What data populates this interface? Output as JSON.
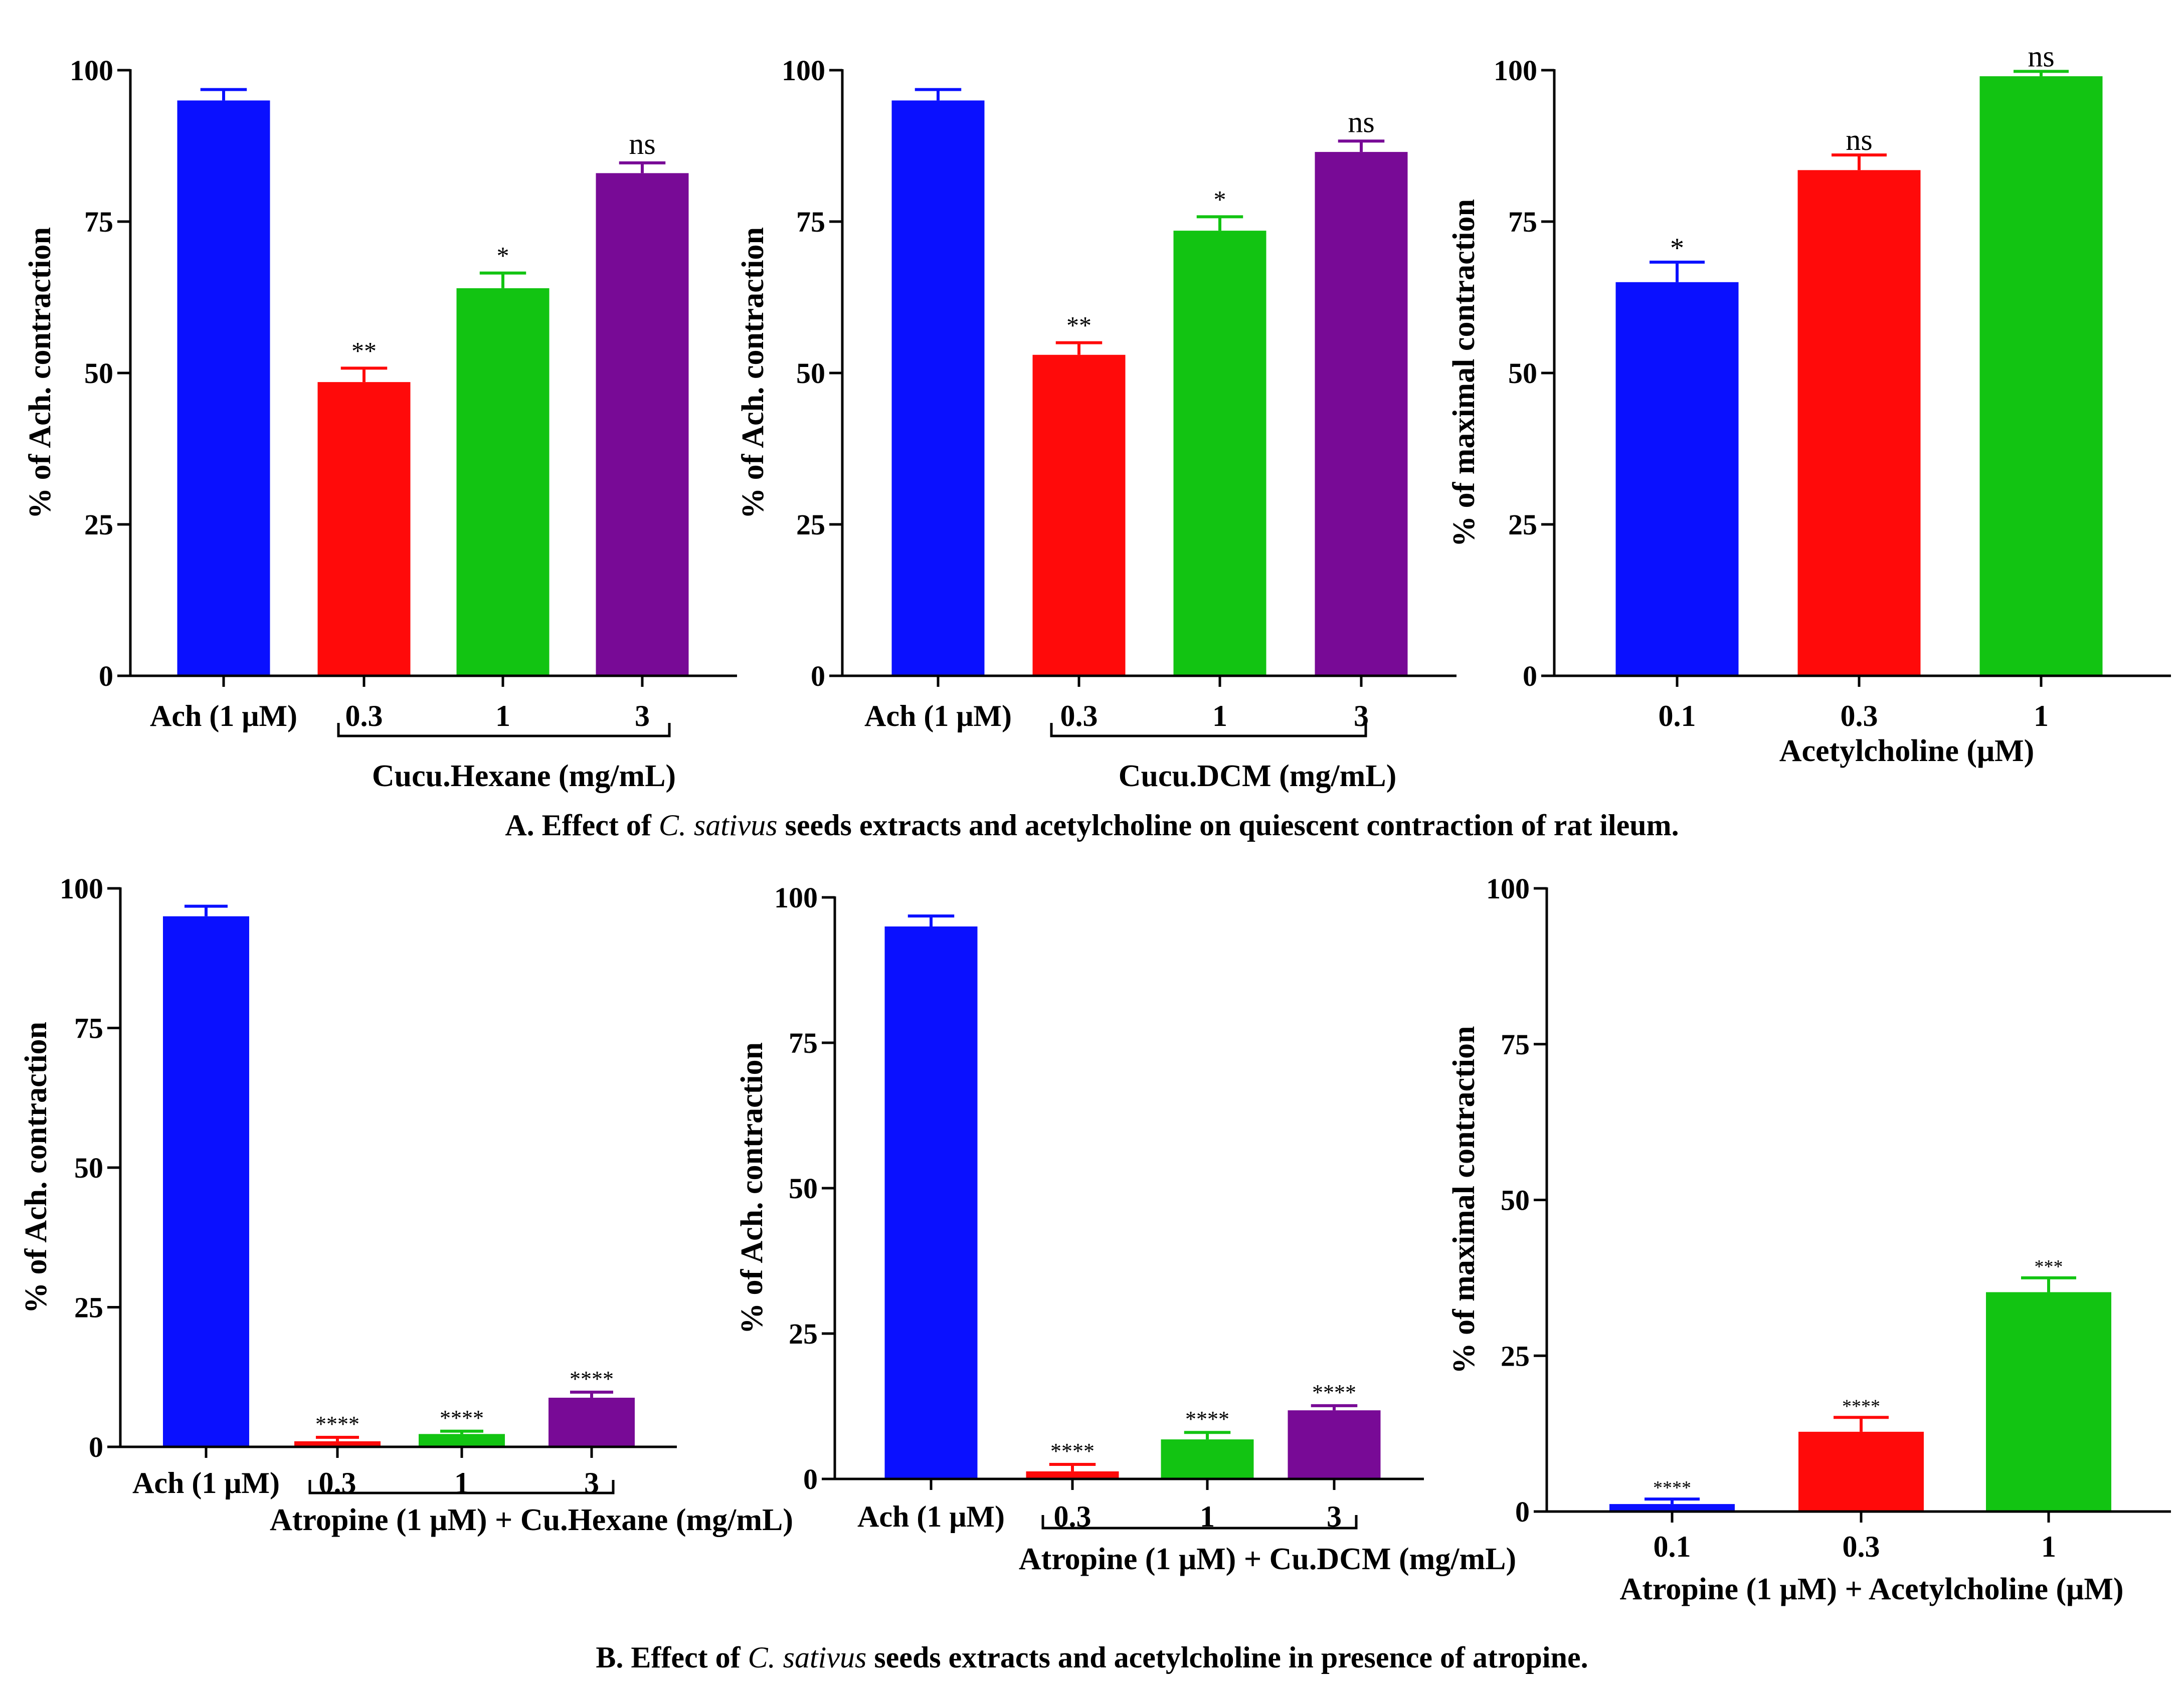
{
  "colors": {
    "blue": "#0a10ff",
    "red": "#ff0a0a",
    "green": "#12c412",
    "purple": "#780a96"
  },
  "captions": {
    "a": {
      "prefix": "A. Effect of ",
      "species": "C. sativus",
      "suffix": " seeds extracts and acetylcholine on quiescent contraction of rat ileum."
    },
    "b": {
      "prefix": "B. Effect of ",
      "species": "C. sativus",
      "suffix": " seeds extracts and acetylcholine in presence of atropine."
    }
  },
  "chart_data": [
    {
      "id": "A1",
      "type": "bar",
      "ylabel": "% of Ach. contraction",
      "ylim": [
        0,
        100
      ],
      "yticks": [
        0,
        25,
        50,
        75,
        100
      ],
      "categories": [
        "Ach (1 μM)",
        "0.3",
        "1",
        "3"
      ],
      "values": [
        95,
        48.5,
        64,
        83
      ],
      "errors": [
        1.8,
        2.3,
        2.5,
        1.7
      ],
      "colors": [
        "blue",
        "red",
        "green",
        "purple"
      ],
      "significance": [
        "",
        "**",
        "*",
        "ns"
      ],
      "xlabel": "Cucu.Hexane (mg/mL)"
    },
    {
      "id": "A2",
      "type": "bar",
      "ylabel": "% of Ach. contraction",
      "ylim": [
        0,
        100
      ],
      "yticks": [
        0,
        25,
        50,
        75,
        100
      ],
      "categories": [
        "Ach (1 μM)",
        "0.3",
        "1",
        "3"
      ],
      "values": [
        95,
        53,
        73.5,
        86.5
      ],
      "errors": [
        1.8,
        2,
        2.3,
        1.8
      ],
      "colors": [
        "blue",
        "red",
        "green",
        "purple"
      ],
      "significance": [
        "",
        "**",
        "*",
        "ns"
      ],
      "xlabel": "Cucu.DCM (mg/mL)"
    },
    {
      "id": "A3",
      "type": "bar",
      "ylabel": "% of maximal contraction",
      "ylim": [
        0,
        100
      ],
      "yticks": [
        0,
        25,
        50,
        75,
        100
      ],
      "categories": [
        "0.1",
        "0.3",
        "1"
      ],
      "values": [
        65,
        83.5,
        99
      ],
      "errors": [
        3.3,
        2.5,
        0.8
      ],
      "colors": [
        "blue",
        "red",
        "green"
      ],
      "significance": [
        "*",
        "ns",
        "ns"
      ],
      "xlabel": "Acetylcholine (μM)"
    },
    {
      "id": "B1",
      "type": "bar",
      "ylabel": "% of Ach. contraction",
      "ylim": [
        0,
        100
      ],
      "yticks": [
        0,
        25,
        50,
        75,
        100
      ],
      "categories": [
        "Ach (1 μM)",
        "0.3",
        "1",
        "3"
      ],
      "values": [
        95,
        1,
        2.3,
        8.8
      ],
      "errors": [
        1.8,
        0.7,
        0.5,
        1
      ],
      "colors": [
        "blue",
        "red",
        "green",
        "purple"
      ],
      "significance": [
        "",
        "****",
        "****",
        "****"
      ],
      "xlabel": "Atropine (1 μM) + Cu.Hexane (mg/mL)"
    },
    {
      "id": "B2",
      "type": "bar",
      "ylabel": "% of Ach. contraction",
      "ylim": [
        0,
        100
      ],
      "yticks": [
        0,
        25,
        50,
        75,
        100
      ],
      "categories": [
        "Ach (1 μM)",
        "0.3",
        "1",
        "3"
      ],
      "values": [
        95,
        1.3,
        6.8,
        11.8
      ],
      "errors": [
        1.8,
        1.2,
        1.2,
        0.8
      ],
      "colors": [
        "blue",
        "red",
        "green",
        "purple"
      ],
      "significance": [
        "",
        "****",
        "****",
        "****"
      ],
      "xlabel": "Atropine (1 μM) + Cu.DCM (mg/mL)"
    },
    {
      "id": "B3",
      "type": "bar",
      "ylabel": "% of maximal contraction",
      "ylim": [
        0,
        100
      ],
      "yticks": [
        0,
        25,
        50,
        75,
        100
      ],
      "categories": [
        "0.1",
        "0.3",
        "1"
      ],
      "values": [
        1.2,
        12.8,
        35.2
      ],
      "errors": [
        0.8,
        2.3,
        2.3
      ],
      "colors": [
        "blue",
        "red",
        "green"
      ],
      "significance": [
        "****",
        "****",
        "***"
      ],
      "xlabel": "Atropine (1 μM) + Acetylcholine (μM)"
    }
  ]
}
